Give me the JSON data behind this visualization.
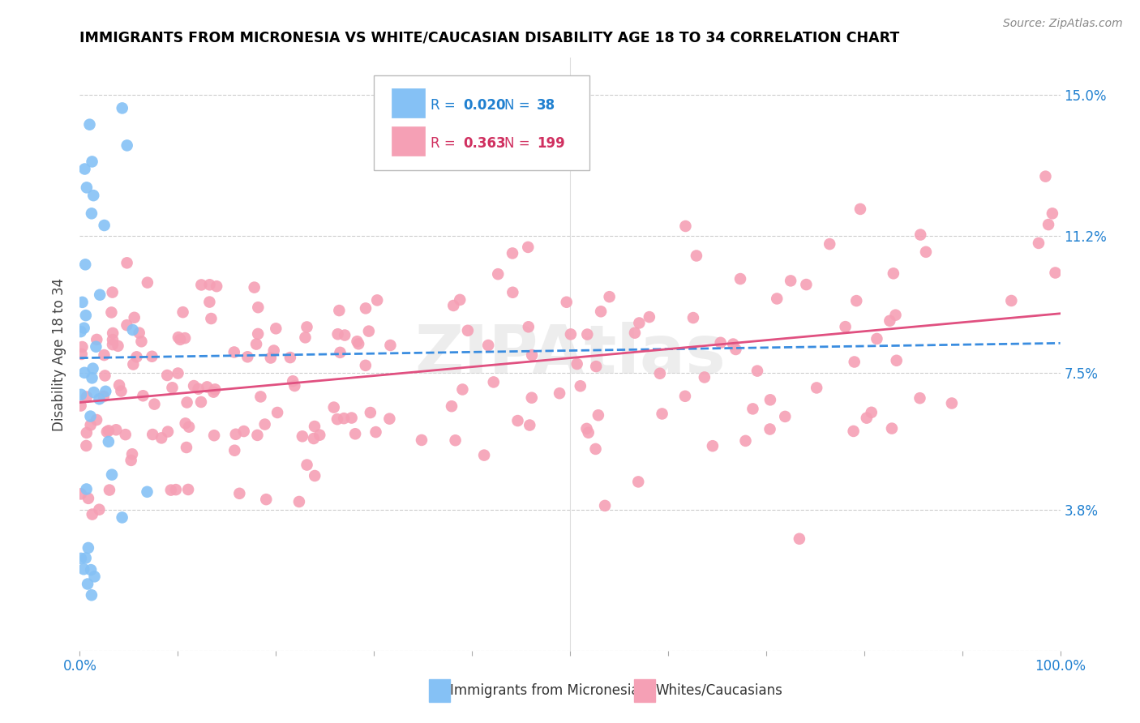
{
  "title": "IMMIGRANTS FROM MICRONESIA VS WHITE/CAUCASIAN DISABILITY AGE 18 TO 34 CORRELATION CHART",
  "source": "Source: ZipAtlas.com",
  "ylabel": "Disability Age 18 to 34",
  "legend_1_label": "Immigrants from Micronesia",
  "legend_2_label": "Whites/Caucasians",
  "R1": "0.020",
  "N1": "38",
  "R2": "0.363",
  "N2": "199",
  "color_blue": "#85C1F5",
  "color_pink": "#F5A0B5",
  "color_blue_line": "#3A8DE0",
  "color_pink_line": "#E05080",
  "color_blue_text": "#2080D0",
  "color_pink_text": "#D03060",
  "watermark": "ZIPAtlas",
  "xlim": [
    0,
    1
  ],
  "ylim": [
    0.0,
    0.16
  ],
  "ytick_vals": [
    0.0,
    0.038,
    0.075,
    0.112,
    0.15
  ],
  "ytick_labels": [
    "",
    "3.8%",
    "7.5%",
    "11.2%",
    "15.0%"
  ],
  "blue_trend_y_start": 0.079,
  "blue_trend_y_end": 0.083,
  "pink_trend_y_start": 0.067,
  "pink_trend_y_end": 0.091
}
